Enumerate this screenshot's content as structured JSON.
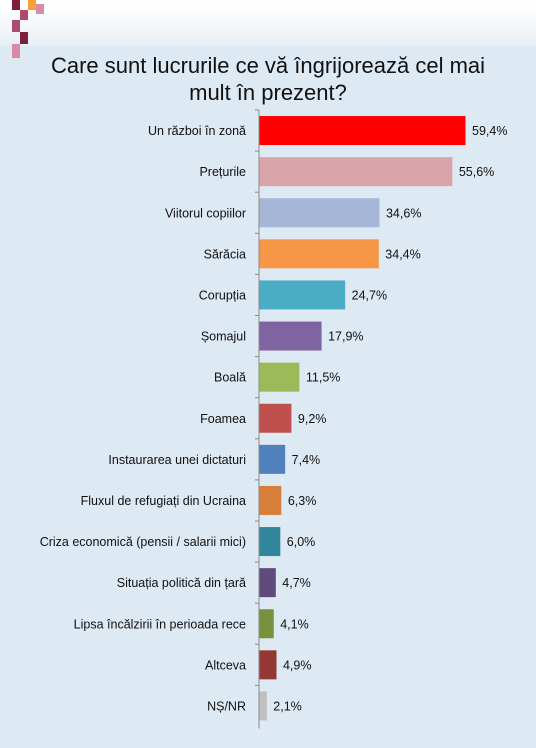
{
  "chart_data": {
    "type": "bar",
    "orientation": "horizontal",
    "title": "Care sunt lucrurile ce vă îngrijorează cel mai mult în prezent?",
    "xlim": [
      0,
      100
    ],
    "grid": false,
    "categories": [
      "Un război în zonă",
      "Prețurile",
      "Viitorul copiilor",
      "Sărăcia",
      "Corupția",
      "Șomajul",
      "Boală",
      "Foamea",
      "Instaurarea unei dictaturi",
      "Fluxul de refugiați din Ucraina",
      "Criza economică (pensii / salarii mici)",
      "Situația politică din țară",
      "Lipsa încălzirii în perioada rece",
      "Altceva",
      "NȘ/NR"
    ],
    "values": [
      59.4,
      55.6,
      34.6,
      34.4,
      24.7,
      17.9,
      11.5,
      9.2,
      7.4,
      6.3,
      6.0,
      4.7,
      4.1,
      4.9,
      2.1
    ],
    "value_labels": [
      "59,4%",
      "55,6%",
      "34,6%",
      "34,4%",
      "24,7%",
      "17,9%",
      "11,5%",
      "9,2%",
      "7,4%",
      "6,3%",
      "6,0%",
      "4,7%",
      "4,1%",
      "4,9%",
      "2,1%"
    ],
    "colors": [
      "#ff0000",
      "#d9a4a9",
      "#a5b6d6",
      "#f79646",
      "#4bacc6",
      "#8064a2",
      "#9bbb59",
      "#c0504d",
      "#4f81bd",
      "#d67e3a",
      "#31859c",
      "#604a7b",
      "#76923c",
      "#953735",
      "#bfbfbf"
    ]
  },
  "decoration": {
    "logo_colors": [
      "#7b1f3a",
      "#b04a6a",
      "#f7a03a",
      "#d98aa8"
    ]
  }
}
